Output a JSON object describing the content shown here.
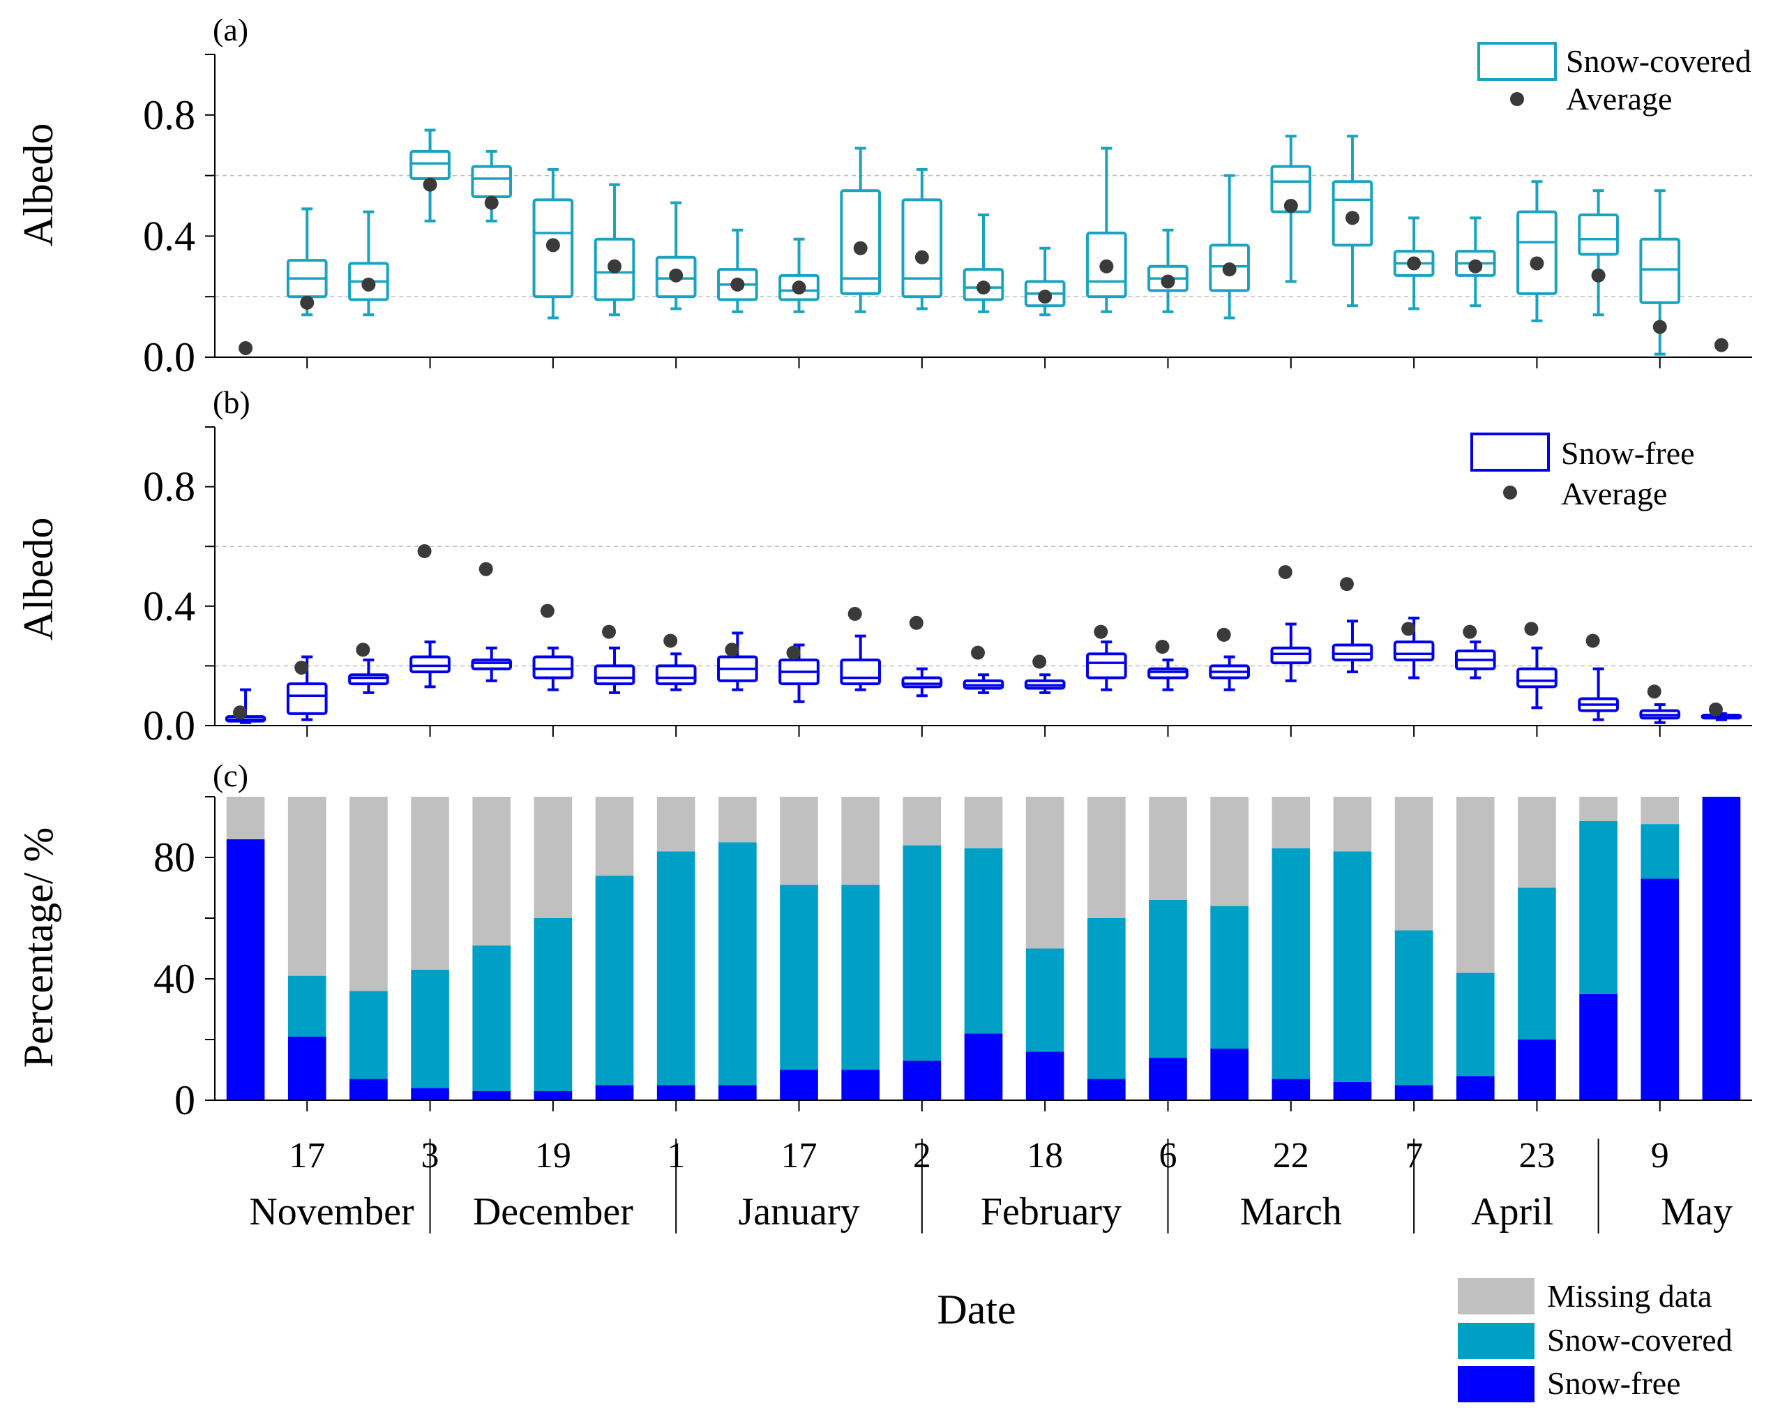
{
  "colors": {
    "snow_covered": "#1aa3c0",
    "snow_free": "#0000ee",
    "missing": "#c0c0c0",
    "average": "#3a3a3a",
    "covered_bar": "#00a0c6",
    "free_bar": "#0000ff"
  },
  "figure": {
    "xlabel": "Date"
  },
  "x_axis": {
    "tick_labels": [
      "17",
      "3",
      "19",
      "1",
      "17",
      "2",
      "18",
      "6",
      "22",
      "7",
      "23",
      "9"
    ],
    "tick_periods": [
      2,
      4,
      6,
      8,
      10,
      12,
      14,
      16,
      18,
      20,
      22,
      24
    ],
    "months": [
      "November",
      "December",
      "January",
      "February",
      "March",
      "April",
      "May"
    ],
    "month_centers": [
      2.4,
      6.0,
      10.0,
      14.1,
      18.0,
      21.6,
      24.6
    ],
    "separators": [
      3.5,
      7.5,
      11.5,
      15.5,
      19.5,
      22.5
    ]
  },
  "chart_data": [
    {
      "type": "box",
      "panel": "(a)",
      "title": "(a)",
      "ylabel": "Albedo",
      "ylim": [
        0,
        1.0
      ],
      "yticks": [
        "0.0",
        "0.4",
        "0.8"
      ],
      "ytick_values": [
        0,
        0.4,
        0.8
      ],
      "grid_lines": [
        0.2,
        0.6
      ],
      "legend": {
        "box": "Snow-covered",
        "dot": "Average"
      },
      "boxes": [
        null,
        {
          "p": 2,
          "lo": 0.14,
          "q1": 0.2,
          "med": 0.26,
          "q3": 0.32,
          "hi": 0.49
        },
        {
          "p": 3,
          "lo": 0.14,
          "q1": 0.19,
          "med": 0.25,
          "q3": 0.31,
          "hi": 0.48
        },
        {
          "p": 4,
          "lo": 0.45,
          "q1": 0.59,
          "med": 0.64,
          "q3": 0.68,
          "hi": 0.75
        },
        {
          "p": 5,
          "lo": 0.45,
          "q1": 0.53,
          "med": 0.59,
          "q3": 0.63,
          "hi": 0.68
        },
        {
          "p": 6,
          "lo": 0.13,
          "q1": 0.2,
          "med": 0.41,
          "q3": 0.52,
          "hi": 0.62
        },
        {
          "p": 7,
          "lo": 0.14,
          "q1": 0.19,
          "med": 0.28,
          "q3": 0.39,
          "hi": 0.57
        },
        {
          "p": 8,
          "lo": 0.16,
          "q1": 0.2,
          "med": 0.26,
          "q3": 0.33,
          "hi": 0.51
        },
        {
          "p": 9,
          "lo": 0.15,
          "q1": 0.19,
          "med": 0.24,
          "q3": 0.29,
          "hi": 0.42
        },
        {
          "p": 10,
          "lo": 0.15,
          "q1": 0.19,
          "med": 0.22,
          "q3": 0.27,
          "hi": 0.39
        },
        {
          "p": 11,
          "lo": 0.15,
          "q1": 0.21,
          "med": 0.26,
          "q3": 0.55,
          "hi": 0.69
        },
        {
          "p": 12,
          "lo": 0.16,
          "q1": 0.2,
          "med": 0.26,
          "q3": 0.52,
          "hi": 0.62
        },
        {
          "p": 13,
          "lo": 0.15,
          "q1": 0.19,
          "med": 0.23,
          "q3": 0.29,
          "hi": 0.47
        },
        {
          "p": 14,
          "lo": 0.14,
          "q1": 0.17,
          "med": 0.21,
          "q3": 0.25,
          "hi": 0.36
        },
        {
          "p": 15,
          "lo": 0.15,
          "q1": 0.2,
          "med": 0.25,
          "q3": 0.41,
          "hi": 0.69
        },
        {
          "p": 16,
          "lo": 0.15,
          "q1": 0.22,
          "med": 0.26,
          "q3": 0.3,
          "hi": 0.42
        },
        {
          "p": 17,
          "lo": 0.13,
          "q1": 0.22,
          "med": 0.3,
          "q3": 0.37,
          "hi": 0.6
        },
        {
          "p": 18,
          "lo": 0.25,
          "q1": 0.48,
          "med": 0.58,
          "q3": 0.63,
          "hi": 0.73
        },
        {
          "p": 19,
          "lo": 0.17,
          "q1": 0.37,
          "med": 0.52,
          "q3": 0.58,
          "hi": 0.73
        },
        {
          "p": 20,
          "lo": 0.16,
          "q1": 0.27,
          "med": 0.31,
          "q3": 0.35,
          "hi": 0.46
        },
        {
          "p": 21,
          "lo": 0.17,
          "q1": 0.27,
          "med": 0.31,
          "q3": 0.35,
          "hi": 0.46
        },
        {
          "p": 22,
          "lo": 0.12,
          "q1": 0.21,
          "med": 0.38,
          "q3": 0.48,
          "hi": 0.58
        },
        {
          "p": 23,
          "lo": 0.14,
          "q1": 0.34,
          "med": 0.39,
          "q3": 0.47,
          "hi": 0.55
        },
        {
          "p": 24,
          "lo": 0.01,
          "q1": 0.18,
          "med": 0.29,
          "q3": 0.39,
          "hi": 0.55
        },
        null
      ],
      "averages": [
        0.03,
        0.18,
        0.24,
        0.57,
        0.51,
        0.37,
        0.3,
        0.27,
        0.24,
        0.23,
        0.36,
        0.33,
        0.23,
        0.2,
        0.3,
        0.25,
        0.29,
        0.5,
        0.46,
        0.31,
        0.3,
        0.31,
        0.27,
        0.1,
        0.04
      ]
    },
    {
      "type": "box",
      "panel": "(b)",
      "title": "(b)",
      "ylabel": "Albedo",
      "ylim": [
        0,
        1.0
      ],
      "yticks": [
        "0.0",
        "0.4",
        "0.8"
      ],
      "ytick_values": [
        0,
        0.4,
        0.8
      ],
      "grid_lines": [
        0.2,
        0.6
      ],
      "legend": {
        "box": "Snow-free",
        "dot": "Average"
      },
      "boxes": [
        {
          "p": 1,
          "lo": 0.01,
          "q1": 0.015,
          "med": 0.02,
          "q3": 0.03,
          "hi": 0.12
        },
        {
          "p": 2,
          "lo": 0.02,
          "q1": 0.04,
          "med": 0.1,
          "q3": 0.14,
          "hi": 0.23
        },
        {
          "p": 3,
          "lo": 0.11,
          "q1": 0.14,
          "med": 0.16,
          "q3": 0.17,
          "hi": 0.22
        },
        {
          "p": 4,
          "lo": 0.13,
          "q1": 0.18,
          "med": 0.2,
          "q3": 0.23,
          "hi": 0.28
        },
        {
          "p": 5,
          "lo": 0.15,
          "q1": 0.19,
          "med": 0.21,
          "q3": 0.22,
          "hi": 0.26
        },
        {
          "p": 6,
          "lo": 0.12,
          "q1": 0.16,
          "med": 0.19,
          "q3": 0.23,
          "hi": 0.26
        },
        {
          "p": 7,
          "lo": 0.11,
          "q1": 0.14,
          "med": 0.16,
          "q3": 0.2,
          "hi": 0.26
        },
        {
          "p": 8,
          "lo": 0.12,
          "q1": 0.14,
          "med": 0.16,
          "q3": 0.2,
          "hi": 0.24
        },
        {
          "p": 9,
          "lo": 0.12,
          "q1": 0.15,
          "med": 0.19,
          "q3": 0.23,
          "hi": 0.31
        },
        {
          "p": 10,
          "lo": 0.08,
          "q1": 0.14,
          "med": 0.18,
          "q3": 0.22,
          "hi": 0.27
        },
        {
          "p": 11,
          "lo": 0.12,
          "q1": 0.14,
          "med": 0.16,
          "q3": 0.22,
          "hi": 0.3
        },
        {
          "p": 12,
          "lo": 0.1,
          "q1": 0.13,
          "med": 0.14,
          "q3": 0.16,
          "hi": 0.19
        },
        {
          "p": 13,
          "lo": 0.11,
          "q1": 0.125,
          "med": 0.135,
          "q3": 0.15,
          "hi": 0.17
        },
        {
          "p": 14,
          "lo": 0.11,
          "q1": 0.125,
          "med": 0.135,
          "q3": 0.15,
          "hi": 0.17
        },
        {
          "p": 15,
          "lo": 0.12,
          "q1": 0.16,
          "med": 0.21,
          "q3": 0.24,
          "hi": 0.28
        },
        {
          "p": 16,
          "lo": 0.12,
          "q1": 0.16,
          "med": 0.18,
          "q3": 0.19,
          "hi": 0.22
        },
        {
          "p": 17,
          "lo": 0.12,
          "q1": 0.16,
          "med": 0.18,
          "q3": 0.2,
          "hi": 0.23
        },
        {
          "p": 18,
          "lo": 0.15,
          "q1": 0.21,
          "med": 0.24,
          "q3": 0.26,
          "hi": 0.34
        },
        {
          "p": 19,
          "lo": 0.18,
          "q1": 0.22,
          "med": 0.24,
          "q3": 0.27,
          "hi": 0.35
        },
        {
          "p": 20,
          "lo": 0.16,
          "q1": 0.22,
          "med": 0.24,
          "q3": 0.28,
          "hi": 0.36
        },
        {
          "p": 21,
          "lo": 0.16,
          "q1": 0.19,
          "med": 0.22,
          "q3": 0.25,
          "hi": 0.28
        },
        {
          "p": 22,
          "lo": 0.06,
          "q1": 0.13,
          "med": 0.15,
          "q3": 0.19,
          "hi": 0.26
        },
        {
          "p": 23,
          "lo": 0.02,
          "q1": 0.05,
          "med": 0.07,
          "q3": 0.09,
          "hi": 0.19
        },
        {
          "p": 24,
          "lo": 0.01,
          "q1": 0.025,
          "med": 0.035,
          "q3": 0.05,
          "hi": 0.07
        },
        {
          "p": 25,
          "lo": 0.02,
          "q1": 0.025,
          "med": 0.03,
          "q3": 0.035,
          "hi": 0.04
        }
      ],
      "averages": [
        0.03,
        0.18,
        0.24,
        0.57,
        0.51,
        0.37,
        0.3,
        0.27,
        0.24,
        0.23,
        0.36,
        0.33,
        0.23,
        0.2,
        0.3,
        0.25,
        0.29,
        0.5,
        0.46,
        0.31,
        0.3,
        0.31,
        0.27,
        0.1,
        0.04
      ]
    },
    {
      "type": "stacked-bar",
      "panel": "(c)",
      "title": "(c)",
      "ylabel": "Percentage/ %",
      "ylim": [
        0,
        100
      ],
      "yticks": [
        "0",
        "40",
        "80"
      ],
      "ytick_values": [
        0,
        40,
        80
      ],
      "legend": [
        "Missing data",
        "Snow-covered",
        "Snow-free"
      ],
      "series": [
        {
          "name": "Snow-free",
          "values": [
            86,
            21,
            7,
            4,
            3,
            3,
            5,
            5,
            5,
            10,
            10,
            13,
            22,
            16,
            7,
            14,
            17,
            7,
            6,
            5,
            8,
            20,
            35,
            73,
            100
          ]
        },
        {
          "name": "Snow-covered",
          "values": [
            0,
            20,
            29,
            39,
            48,
            57,
            69,
            77,
            80,
            61,
            61,
            71,
            61,
            34,
            53,
            52,
            47,
            76,
            76,
            51,
            34,
            50,
            57,
            18,
            0
          ]
        },
        {
          "name": "Missing data",
          "values": [
            14,
            59,
            64,
            57,
            49,
            40,
            26,
            18,
            15,
            29,
            29,
            16,
            17,
            50,
            40,
            34,
            36,
            17,
            18,
            44,
            58,
            30,
            8,
            9,
            0
          ]
        }
      ]
    }
  ]
}
